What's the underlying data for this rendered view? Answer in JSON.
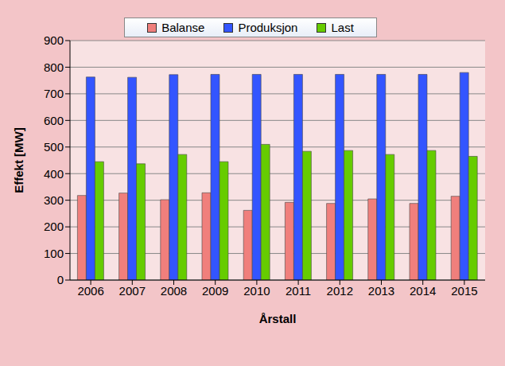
{
  "chart_data": {
    "type": "bar",
    "x_label": "Årstall",
    "y_label": "Effekt  [MW]",
    "categories": [
      "2006",
      "2007",
      "2008",
      "2009",
      "2010",
      "2011",
      "2012",
      "2013",
      "2014",
      "2015"
    ],
    "series": [
      {
        "name": "Balanse",
        "color": "#f07f7c",
        "values": [
          318,
          327,
          302,
          328,
          262,
          292,
          288,
          305,
          288,
          315
        ]
      },
      {
        "name": "Produksjon",
        "color": "#3355ff",
        "values": [
          763,
          762,
          772,
          773,
          773,
          773,
          773,
          773,
          773,
          780
        ]
      },
      {
        "name": "Last",
        "color": "#66cc00",
        "values": [
          445,
          437,
          472,
          445,
          510,
          484,
          487,
          472,
          487,
          465
        ]
      }
    ],
    "ylim": [
      0,
      900
    ],
    "yticks": [
      0,
      100,
      200,
      300,
      400,
      500,
      600,
      700,
      800,
      900
    ],
    "grid": true,
    "legend": "top"
  }
}
